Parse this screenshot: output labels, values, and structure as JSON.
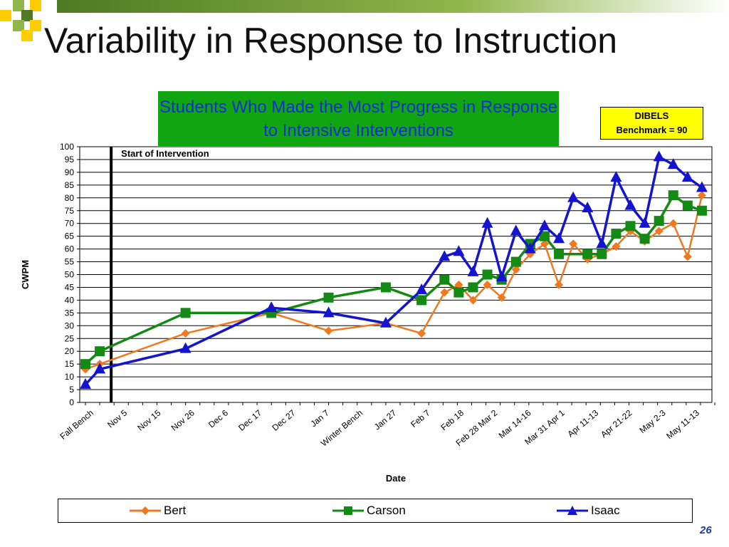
{
  "slide": {
    "title": "Variability in Response to Instruction",
    "subtitle": "Students Who Made the Most Progress in Response to Intensive Interventions",
    "benchmark_line1": "DIBELS",
    "benchmark_line2": "Benchmark = 90",
    "page_number": "26",
    "colors": {
      "accent_dark": "#4d7a22",
      "accent_light": "#8fb64a",
      "yellow": "#ffcc00",
      "subtitle_bg": "#11a611",
      "subtitle_text": "#1030d0",
      "benchmark_bg": "#ffff00"
    }
  },
  "chart_data": {
    "type": "line",
    "ylabel": "CWPM",
    "xlabel": "Date",
    "ylim": [
      0,
      100
    ],
    "ytick_step": 5,
    "grid": true,
    "legend_position": "bottom",
    "annotation": "Start of Intervention",
    "annotation_x": 1.8,
    "tick_labels": [
      "Fall Bench",
      "Nov 5",
      "Nov 15",
      "Nov 26",
      "Dec 6",
      "Dec 17",
      "Dec 27",
      "Jan 7",
      "Winter Bench",
      "Jan 27",
      "Feb 7",
      "Feb 18",
      "Feb 28 Mar 2",
      "Mar 14-16",
      "Mar 31 Apr 1",
      "Apr 11-13",
      "Apr 21-22",
      "May 2-3",
      "May 11-13"
    ],
    "series": [
      {
        "name": "Bert",
        "color": "#f07820",
        "marker": "diamond",
        "x": [
          0,
          1,
          7,
          13,
          17,
          21,
          23.5,
          25.1,
          26.1,
          27.1,
          28.1,
          29.1,
          30.1,
          31.1,
          32.1,
          33.1,
          34.1,
          35.1,
          36.1,
          37.1,
          38.1,
          39.1,
          40.1,
          41.1,
          42.1,
          43.1
        ],
        "y": [
          13,
          15,
          27,
          35,
          28,
          31,
          27,
          43,
          46,
          40,
          46,
          41,
          52,
          58,
          62,
          46,
          62,
          56,
          58,
          61,
          67,
          63,
          67,
          70,
          57,
          81
        ]
      },
      {
        "name": "Carson",
        "color": "#138a13",
        "marker": "square",
        "x": [
          0,
          1,
          7,
          13,
          17,
          21,
          23.5,
          25.1,
          26.1,
          27.1,
          28.1,
          29.1,
          30.1,
          31.1,
          32.1,
          33.1,
          35.1,
          36.1,
          37.1,
          38.1,
          39.1,
          40.1,
          41.1,
          42.1,
          43.1
        ],
        "y": [
          15,
          20,
          35,
          35,
          41,
          45,
          40,
          48,
          43,
          45,
          50,
          48,
          55,
          62,
          65,
          58,
          58,
          58,
          66,
          69,
          64,
          71,
          81,
          77,
          75
        ]
      },
      {
        "name": "Isaac",
        "color": "#1414d0",
        "marker": "triangle",
        "x": [
          0,
          1,
          7,
          13,
          17,
          21,
          23.5,
          25.1,
          26.1,
          27.1,
          28.1,
          29.1,
          30.1,
          31.1,
          32.1,
          33.1,
          34.1,
          35.1,
          36.1,
          37.1,
          38.1,
          39.1,
          40.1,
          41.1,
          42.1,
          43.1
        ],
        "y": [
          7,
          13,
          21,
          37,
          35,
          31,
          44,
          57,
          59,
          51,
          70,
          49,
          67,
          60,
          69,
          64,
          80,
          76,
          62,
          88,
          77,
          70,
          96,
          93,
          88,
          84
        ]
      }
    ]
  }
}
